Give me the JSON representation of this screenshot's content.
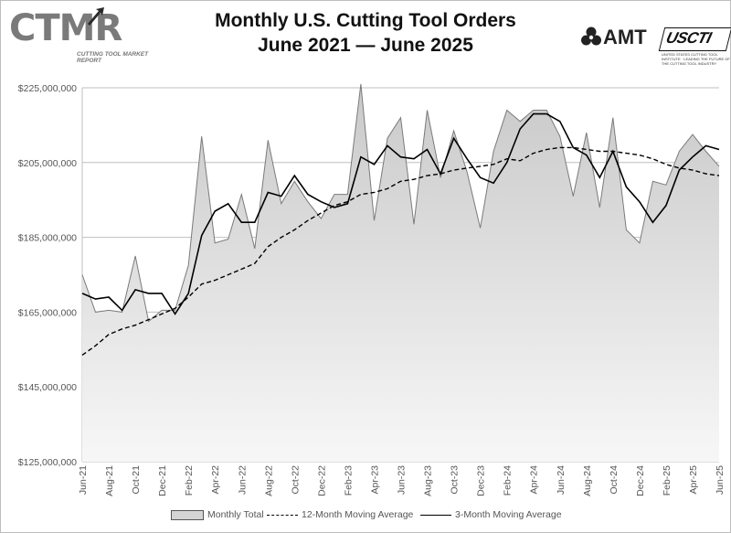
{
  "header": {
    "title_line1": "Monthly U.S. Cutting Tool Orders",
    "title_line2": "June 2021 — June 2025"
  },
  "logos": {
    "ctmr": "CTMR",
    "ctmr_sub": "CUTTING TOOL MARKET REPORT",
    "amt": "AMT",
    "usct": "USCTI",
    "usct_sub": "UNITED STATES CUTTING TOOL INSTITUTE · LEADING THE FUTURE OF THE CUTTING TOOL INDUSTRY"
  },
  "chart_data": {
    "type": "area",
    "title": "Monthly U.S. Cutting Tool Orders June 2021 — June 2025",
    "xlabel": "",
    "ylabel": "",
    "ylim": [
      125000000,
      225000000
    ],
    "yticks": [
      125000000,
      145000000,
      165000000,
      185000000,
      205000000,
      225000000
    ],
    "ytick_labels": [
      "$125,000,000",
      "$145,000,000",
      "$165,000,000",
      "$185,000,000",
      "$205,000,000",
      "$225,000,000"
    ],
    "grid": true,
    "legend_position": "bottom",
    "x": [
      "Jun-21",
      "Jul-21",
      "Aug-21",
      "Sep-21",
      "Oct-21",
      "Nov-21",
      "Dec-21",
      "Jan-22",
      "Feb-22",
      "Mar-22",
      "Apr-22",
      "May-22",
      "Jun-22",
      "Jul-22",
      "Aug-22",
      "Sep-22",
      "Oct-22",
      "Nov-22",
      "Dec-22",
      "Jan-23",
      "Feb-23",
      "Mar-23",
      "Apr-23",
      "May-23",
      "Jun-23",
      "Jul-23",
      "Aug-23",
      "Sep-23",
      "Oct-23",
      "Nov-23",
      "Dec-23",
      "Jan-24",
      "Feb-24",
      "Mar-24",
      "Apr-24",
      "May-24",
      "Jun-24",
      "Jul-24",
      "Aug-24",
      "Sep-24",
      "Oct-24",
      "Nov-24",
      "Dec-24",
      "Jan-25",
      "Feb-25",
      "Mar-25",
      "Apr-25",
      "May-25",
      "Jun-25"
    ],
    "tick_labels": [
      "Jun-21",
      "Aug-21",
      "Oct-21",
      "Dec-21",
      "Feb-22",
      "Apr-22",
      "Jun-22",
      "Aug-22",
      "Oct-22",
      "Dec-22",
      "Feb-23",
      "Apr-23",
      "Jun-23",
      "Aug-23",
      "Oct-23",
      "Dec-23",
      "Feb-24",
      "Apr-24",
      "Jun-24",
      "Aug-24",
      "Oct-24",
      "Dec-24",
      "Feb-25",
      "Apr-25",
      "Jun-25"
    ],
    "series": [
      {
        "name": "Monthly Total",
        "style": "area",
        "color": "#d4d4d4",
        "values": [
          175000000,
          165000000,
          165500000,
          165000000,
          180000000,
          162500000,
          165500000,
          165500000,
          177500000,
          212000000,
          183500000,
          184500000,
          196500000,
          182000000,
          211000000,
          194000000,
          200000000,
          194500000,
          190000000,
          196500000,
          196500000,
          226000000,
          189500000,
          211500000,
          217000000,
          188500000,
          219000000,
          201000000,
          213500000,
          202500000,
          187500000,
          208000000,
          219000000,
          216000000,
          219000000,
          219000000,
          212000000,
          196000000,
          213000000,
          193000000,
          217000000,
          187000000,
          183500000,
          200000000,
          199000000,
          208000000,
          212500000,
          208000000,
          204000000
        ]
      },
      {
        "name": "12-Month Moving Average",
        "style": "dashed",
        "color": "#000000",
        "values": [
          153500000,
          156000000,
          159000000,
          160500000,
          161500000,
          163000000,
          164500000,
          166000000,
          169000000,
          172500000,
          173500000,
          175000000,
          176500000,
          178000000,
          182500000,
          185000000,
          187000000,
          189500000,
          191500000,
          193500000,
          194500000,
          196500000,
          197000000,
          198000000,
          200000000,
          200500000,
          201500000,
          202000000,
          203000000,
          203500000,
          204000000,
          204500000,
          206000000,
          205500000,
          207500000,
          208500000,
          209000000,
          209000000,
          208500000,
          208000000,
          208000000,
          207500000,
          207000000,
          206000000,
          204500000,
          203500000,
          203000000,
          202000000,
          201500000
        ]
      },
      {
        "name": "3-Month Moving Average",
        "style": "solid",
        "color": "#000000",
        "values": [
          170000000,
          168500000,
          169000000,
          165500000,
          171000000,
          170000000,
          170000000,
          164500000,
          170000000,
          185500000,
          192000000,
          194000000,
          189000000,
          189000000,
          197000000,
          196000000,
          201500000,
          196500000,
          194500000,
          193000000,
          194000000,
          206500000,
          204500000,
          209500000,
          206500000,
          206000000,
          208500000,
          202000000,
          211500000,
          206000000,
          201000000,
          199500000,
          205000000,
          214000000,
          218000000,
          218000000,
          216000000,
          209000000,
          207000000,
          201000000,
          208000000,
          198500000,
          194500000,
          189000000,
          193500000,
          203000000,
          206500000,
          209500000,
          208500000
        ]
      }
    ]
  }
}
